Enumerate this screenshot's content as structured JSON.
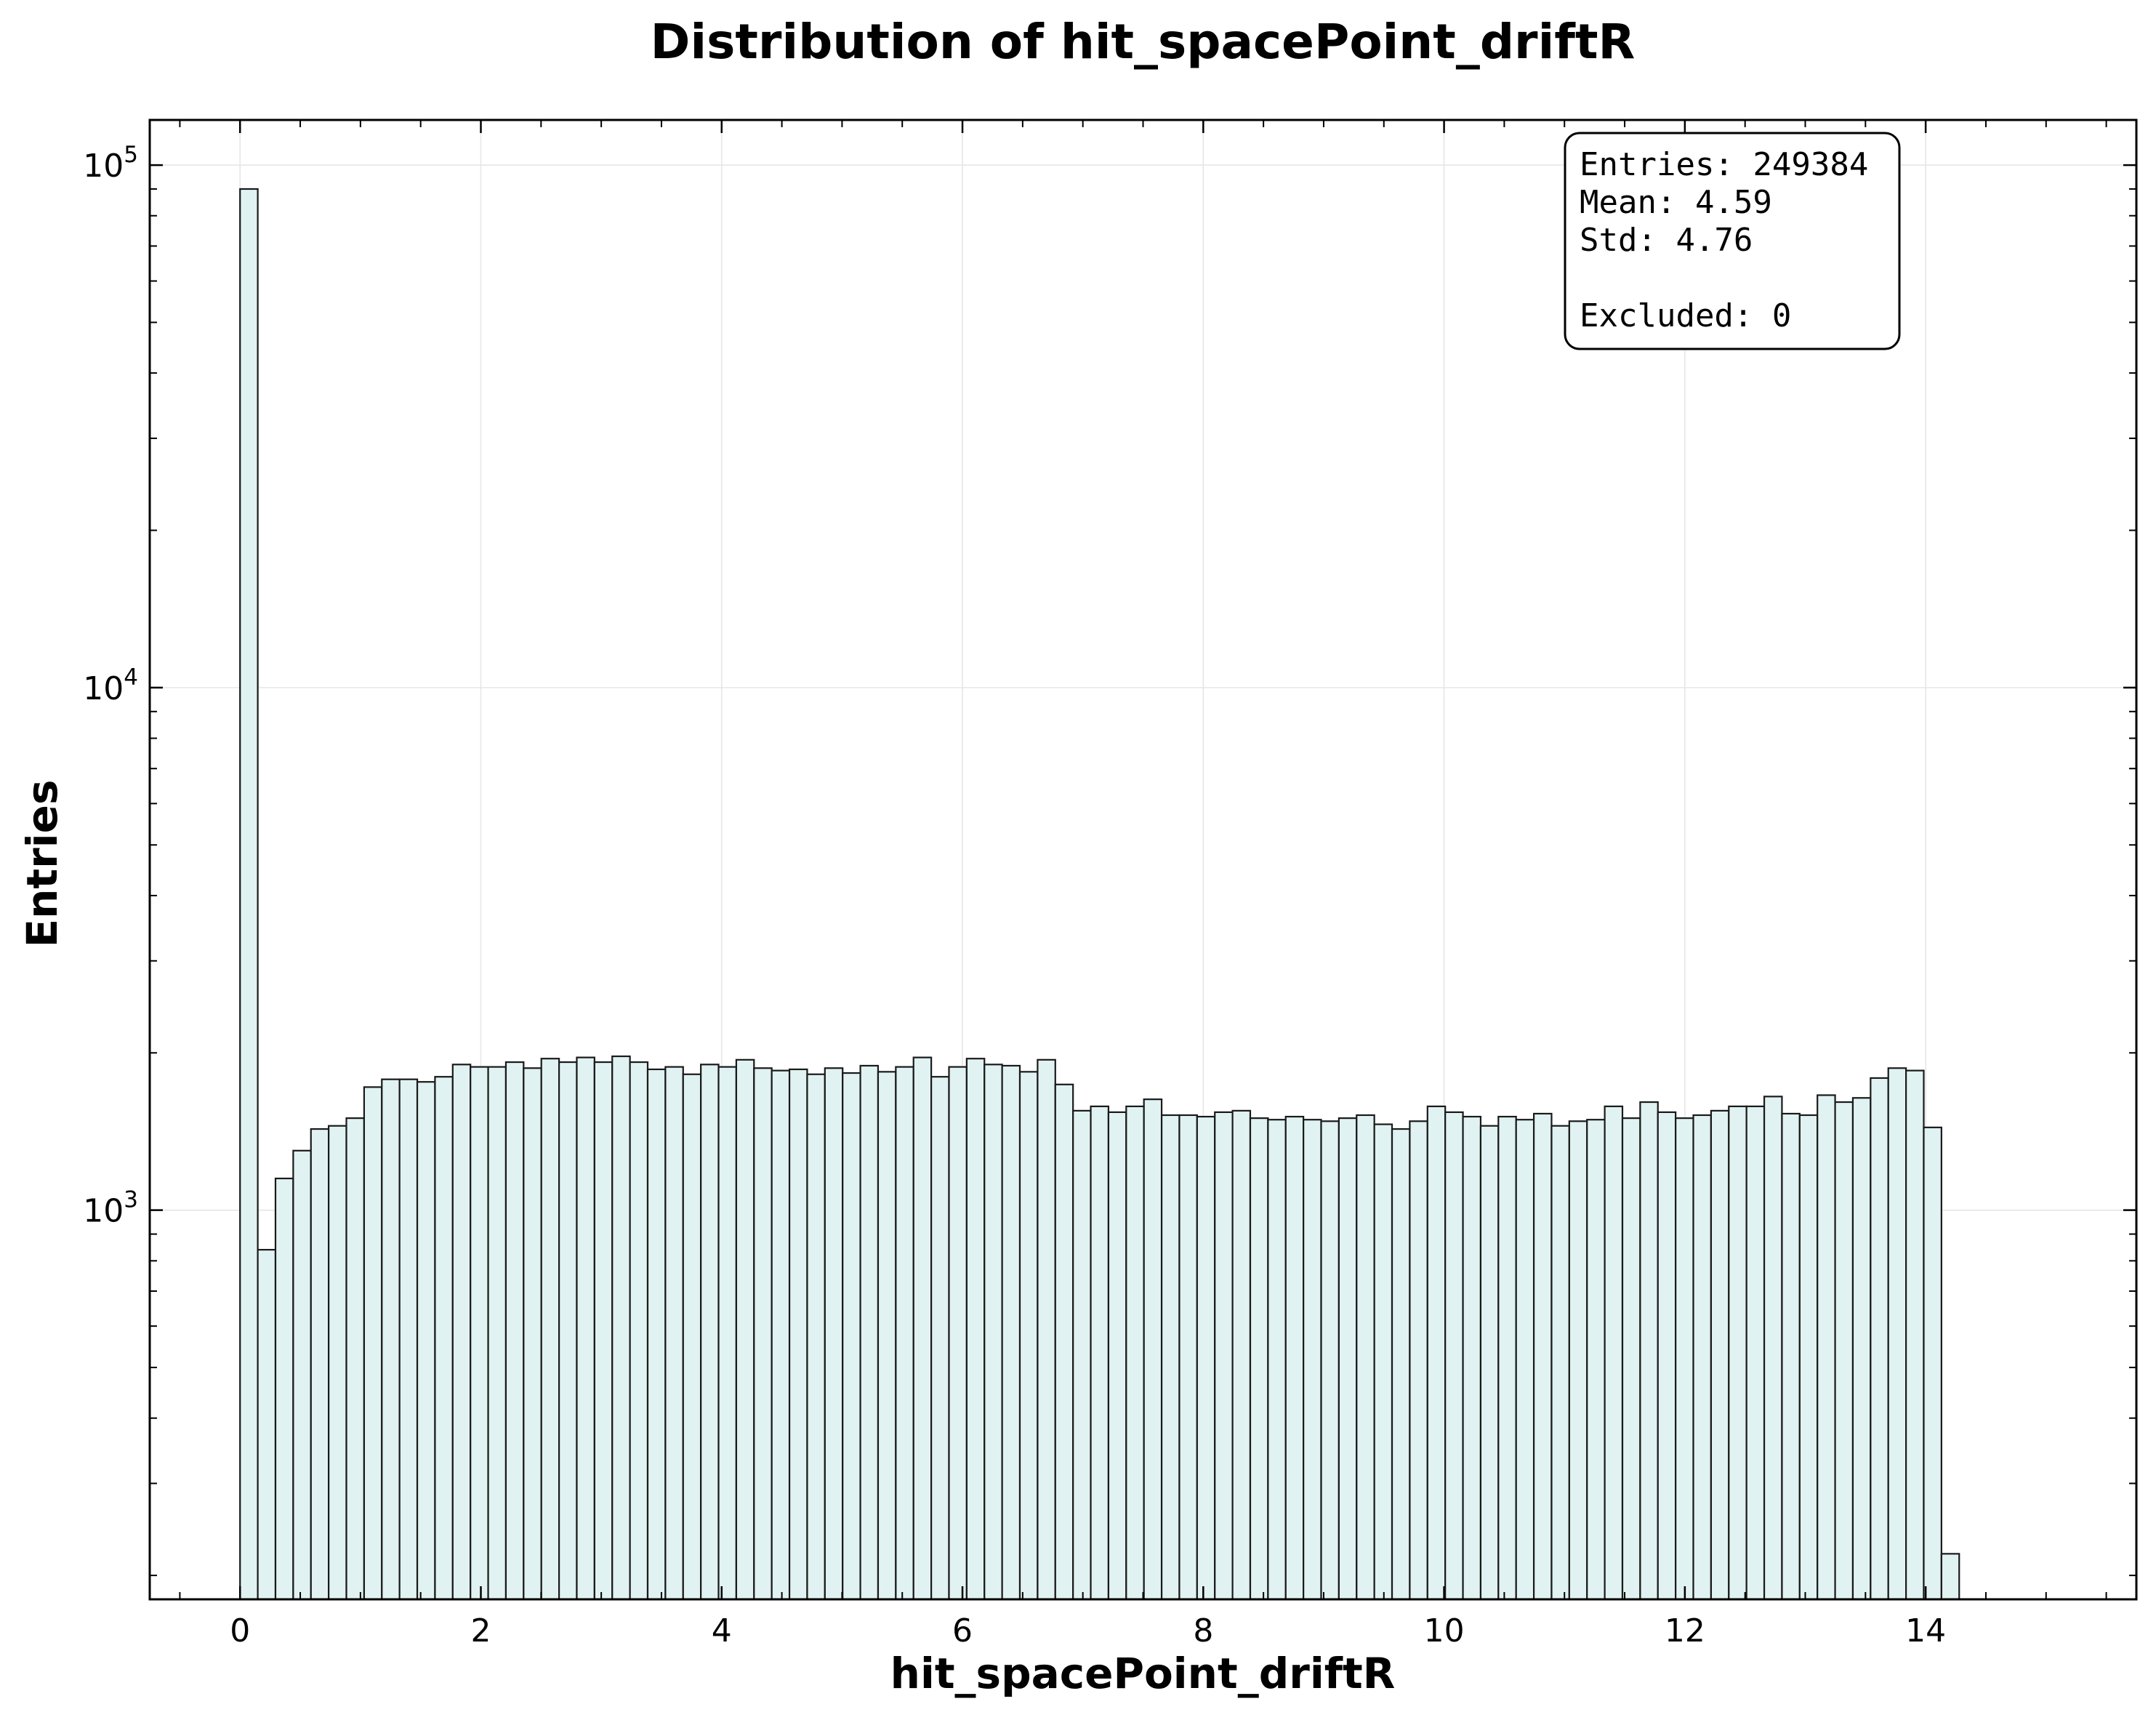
{
  "chart_data": {
    "type": "bar",
    "title": "Distribution of hit_spacePoint_driftR",
    "xlabel": "hit_spacePoint_driftR",
    "ylabel": "Entries",
    "x_log": false,
    "y_log": true,
    "xlim": [
      -0.75,
      15.75
    ],
    "ylim": [
      180,
      122000
    ],
    "grid": true,
    "x_ticks": [
      0,
      2,
      4,
      6,
      8,
      10,
      12,
      14
    ],
    "y_ticks": [
      {
        "value": 1000,
        "base": "10",
        "exp": "3"
      },
      {
        "value": 10000,
        "base": "10",
        "exp": "4"
      },
      {
        "value": 100000,
        "base": "10",
        "exp": "5"
      }
    ],
    "bin_start": 0.0,
    "bin_width": 0.1472,
    "values": [
      90000,
      840,
      1150,
      1300,
      1430,
      1450,
      1500,
      1720,
      1780,
      1780,
      1760,
      1800,
      1900,
      1880,
      1880,
      1920,
      1870,
      1950,
      1920,
      1960,
      1920,
      1970,
      1920,
      1860,
      1880,
      1820,
      1900,
      1880,
      1940,
      1870,
      1850,
      1860,
      1820,
      1870,
      1830,
      1890,
      1840,
      1880,
      1960,
      1800,
      1880,
      1950,
      1900,
      1890,
      1840,
      1940,
      1740,
      1550,
      1580,
      1540,
      1580,
      1630,
      1520,
      1520,
      1510,
      1540,
      1550,
      1500,
      1490,
      1510,
      1490,
      1480,
      1500,
      1520,
      1460,
      1430,
      1480,
      1580,
      1540,
      1510,
      1450,
      1510,
      1490,
      1530,
      1450,
      1480,
      1490,
      1580,
      1500,
      1610,
      1540,
      1500,
      1520,
      1550,
      1580,
      1580,
      1650,
      1530,
      1520,
      1660,
      1610,
      1640,
      1790,
      1870,
      1850,
      1440,
      220
    ],
    "bar_fill": "#e0f2f1",
    "bar_stroke": "#1a1a1a",
    "stats_box": {
      "entries": "Entries: 249384",
      "mean": "Mean: 4.59",
      "std": "Std: 4.76",
      "excluded": "Excluded: 0"
    }
  }
}
